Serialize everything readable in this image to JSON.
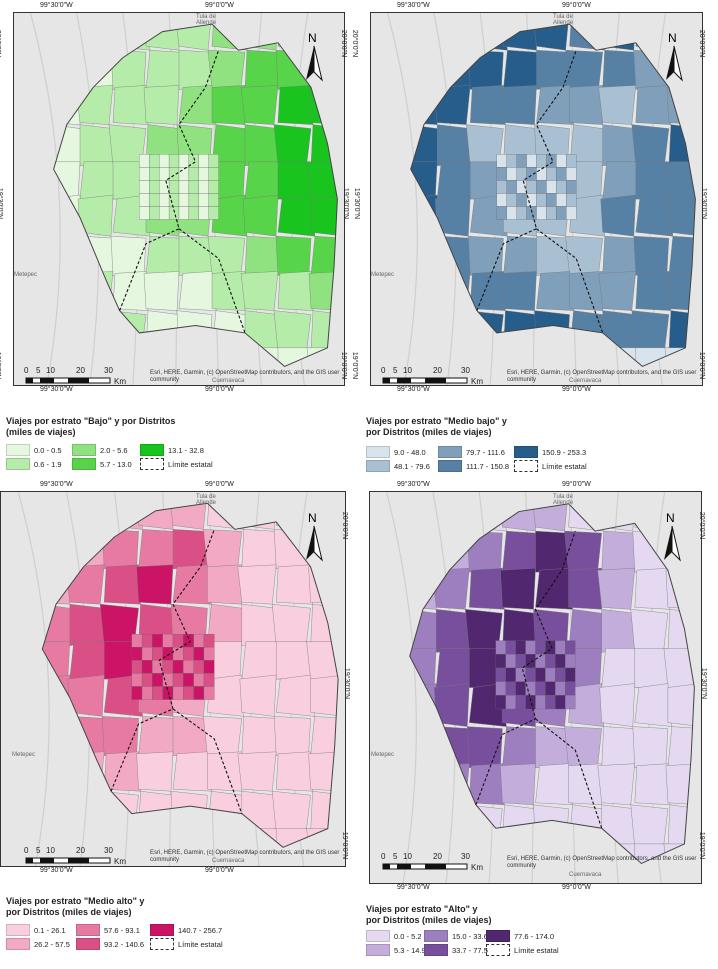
{
  "coords": {
    "lon_left": "99°30'0\"W",
    "lon_right": "99°0'0\"W",
    "lat_top": "20°0'0\"N",
    "lat_mid": "19°30'0\"N",
    "lat_bottom": "19°0'0\"N"
  },
  "places": {
    "tula_line1": "Tula de",
    "tula_line2": "Allende",
    "metepec": "Metepec",
    "cuernavaca": "Cuernavaca"
  },
  "north_label": "N",
  "scale": {
    "ticks": [
      "0",
      "5",
      "10",
      "20",
      "30"
    ],
    "unit": "Km"
  },
  "attribution": "Esri, HERE, Garmin, (c) OpenStreetMap contributors, and the GIS user community",
  "boundary_label": "Límite estatal",
  "maps": [
    {
      "id": "bajo",
      "legend_title_1": "Viajes por estrato \"Bajo\" y por Distritos",
      "legend_title_2": "(miles de viajes)",
      "classes": [
        "0.0 - 0.5",
        "0.6 - 1.9",
        "2.0 - 5.6",
        "5.7 - 13.0",
        "13.1 - 32.8"
      ],
      "colors": [
        "#e5f7df",
        "#b6ecaa",
        "#8fe27f",
        "#58d44a",
        "#19c41e"
      ]
    },
    {
      "id": "medio_bajo",
      "legend_title_1": "Viajes por estrato \"Medio bajo\" y",
      "legend_title_2": "por Distritos (miles de viajes)",
      "classes": [
        "9.0 - 48.0",
        "48.1 - 79.6",
        "79.7 - 111.6",
        "111.7 - 150.8",
        "150.9 - 253.3"
      ],
      "colors": [
        "#d8e3ec",
        "#a9c0d3",
        "#7f9fbb",
        "#5781a4",
        "#275d8b"
      ]
    },
    {
      "id": "medio_alto",
      "legend_title_1": "Viajes por estrato \"Medio alto\" y",
      "legend_title_2": "por Distritos (miles de viajes)",
      "classes": [
        "0.1 - 26.1",
        "26.2 - 57.5",
        "57.6 - 93.1",
        "93.2 - 140.6",
        "140.7 - 256.7"
      ],
      "colors": [
        "#f9cfdf",
        "#f2a9c4",
        "#e77aa3",
        "#da4f86",
        "#cc1466"
      ]
    },
    {
      "id": "alto",
      "legend_title_1": "Viajes por estrato \"Alto\" y",
      "legend_title_2": "por Distritos (miles de viajes)",
      "classes": [
        "0.0 - 5.2",
        "5.3 - 14.9",
        "15.0 - 33.6",
        "33.7 - 77.5",
        "77.6 - 174.0"
      ],
      "colors": [
        "#e4d9f0",
        "#c3aedb",
        "#9d7fbf",
        "#774f9c",
        "#51276f"
      ]
    }
  ]
}
